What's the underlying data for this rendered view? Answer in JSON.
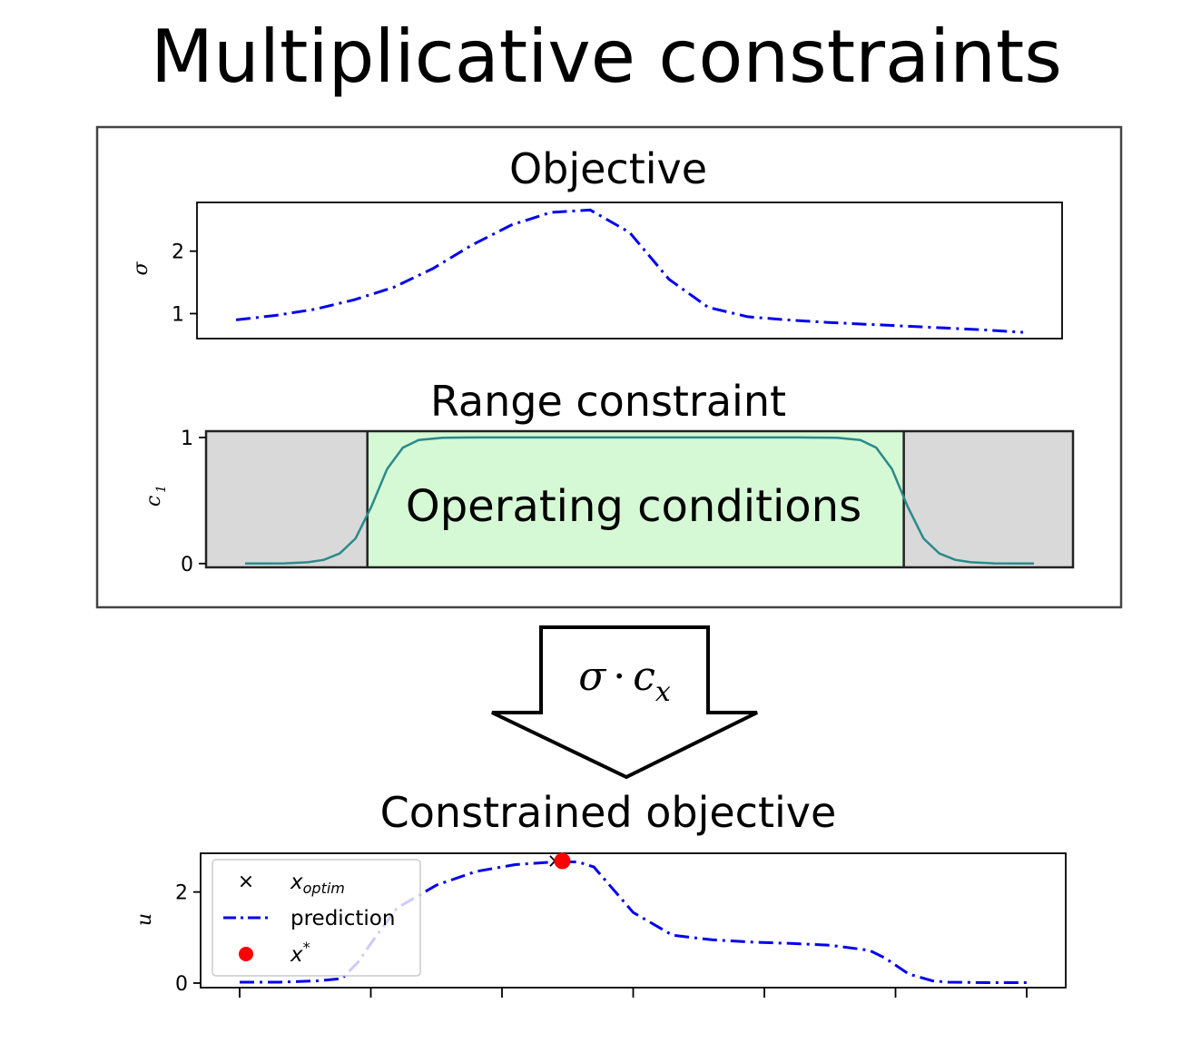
{
  "title": "Multiplicative constraints",
  "formula": {
    "sigma": "σ",
    "dot": "·",
    "c": "c",
    "sub": "x"
  },
  "colors": {
    "prediction": "#0000ee",
    "constraint_curve": "#2a8a8a",
    "operating_fill": "#d5f8d5",
    "excluded_fill": "#d9d9d9",
    "optimum_point": "#ff0000"
  },
  "chart_data": [
    {
      "type": "line",
      "title": "Objective",
      "ylabel": "σ",
      "ylim": [
        0.6,
        2.78
      ],
      "yticks": [
        "1",
        "2"
      ],
      "x": [
        0,
        0.05,
        0.1,
        0.15,
        0.2,
        0.25,
        0.3,
        0.35,
        0.4,
        0.45,
        0.5,
        0.55,
        0.6,
        0.65,
        0.7,
        0.75,
        0.8,
        0.85,
        0.9,
        0.95,
        1.0
      ],
      "series": [
        {
          "style": "dash-dot",
          "values": [
            0.9,
            0.97,
            1.07,
            1.22,
            1.42,
            1.72,
            2.1,
            2.42,
            2.62,
            2.66,
            2.3,
            1.55,
            1.1,
            0.95,
            0.9,
            0.86,
            0.83,
            0.8,
            0.77,
            0.74,
            0.7
          ]
        }
      ]
    },
    {
      "type": "line",
      "title": "Range constraint",
      "ylabel": "c",
      "ylabel_sub": "1",
      "ylim": [
        -0.03,
        1.05
      ],
      "yticks": [
        "0",
        "1"
      ],
      "region_label": "Operating conditions",
      "operating_range": [
        0.155,
        0.835
      ],
      "x": [
        0,
        0.05,
        0.08,
        0.1,
        0.12,
        0.14,
        0.16,
        0.18,
        0.2,
        0.22,
        0.25,
        0.3,
        0.4,
        0.5,
        0.6,
        0.7,
        0.75,
        0.78,
        0.8,
        0.82,
        0.84,
        0.86,
        0.88,
        0.9,
        0.92,
        0.95,
        1.0
      ],
      "series": [
        {
          "style": "solid",
          "values": [
            0,
            0.002,
            0.01,
            0.03,
            0.08,
            0.2,
            0.45,
            0.75,
            0.92,
            0.98,
            0.998,
            1,
            1,
            1,
            1,
            1,
            0.998,
            0.98,
            0.92,
            0.75,
            0.45,
            0.2,
            0.08,
            0.03,
            0.01,
            0.002,
            0
          ]
        }
      ]
    },
    {
      "type": "line",
      "title": "Constrained objective",
      "ylabel": "u",
      "ylim": [
        -0.1,
        2.85
      ],
      "yticks": [
        "0",
        "2"
      ],
      "x_ticks_count": 7,
      "x": [
        0,
        0.05,
        0.1,
        0.13,
        0.15,
        0.17,
        0.2,
        0.25,
        0.3,
        0.35,
        0.4,
        0.43,
        0.45,
        0.5,
        0.55,
        0.6,
        0.65,
        0.7,
        0.75,
        0.8,
        0.82,
        0.85,
        0.88,
        0.9,
        0.95,
        1.0
      ],
      "series": [
        {
          "name": "prediction",
          "style": "dash-dot",
          "values": [
            0.02,
            0.02,
            0.05,
            0.1,
            0.45,
            0.95,
            1.65,
            2.15,
            2.45,
            2.6,
            2.66,
            2.66,
            2.55,
            1.55,
            1.05,
            0.95,
            0.9,
            0.87,
            0.83,
            0.72,
            0.55,
            0.2,
            0.05,
            0.02,
            0.01,
            0.01
          ]
        }
      ],
      "optimum": {
        "x": 0.41,
        "y": 2.68
      },
      "legend": {
        "placement": "upper-left",
        "entries": [
          {
            "marker": "×",
            "label": "x",
            "sub": "optim"
          },
          {
            "marker": "line",
            "label": "prediction"
          },
          {
            "marker": "dot",
            "label": "x",
            "sup": "*"
          }
        ]
      }
    }
  ]
}
